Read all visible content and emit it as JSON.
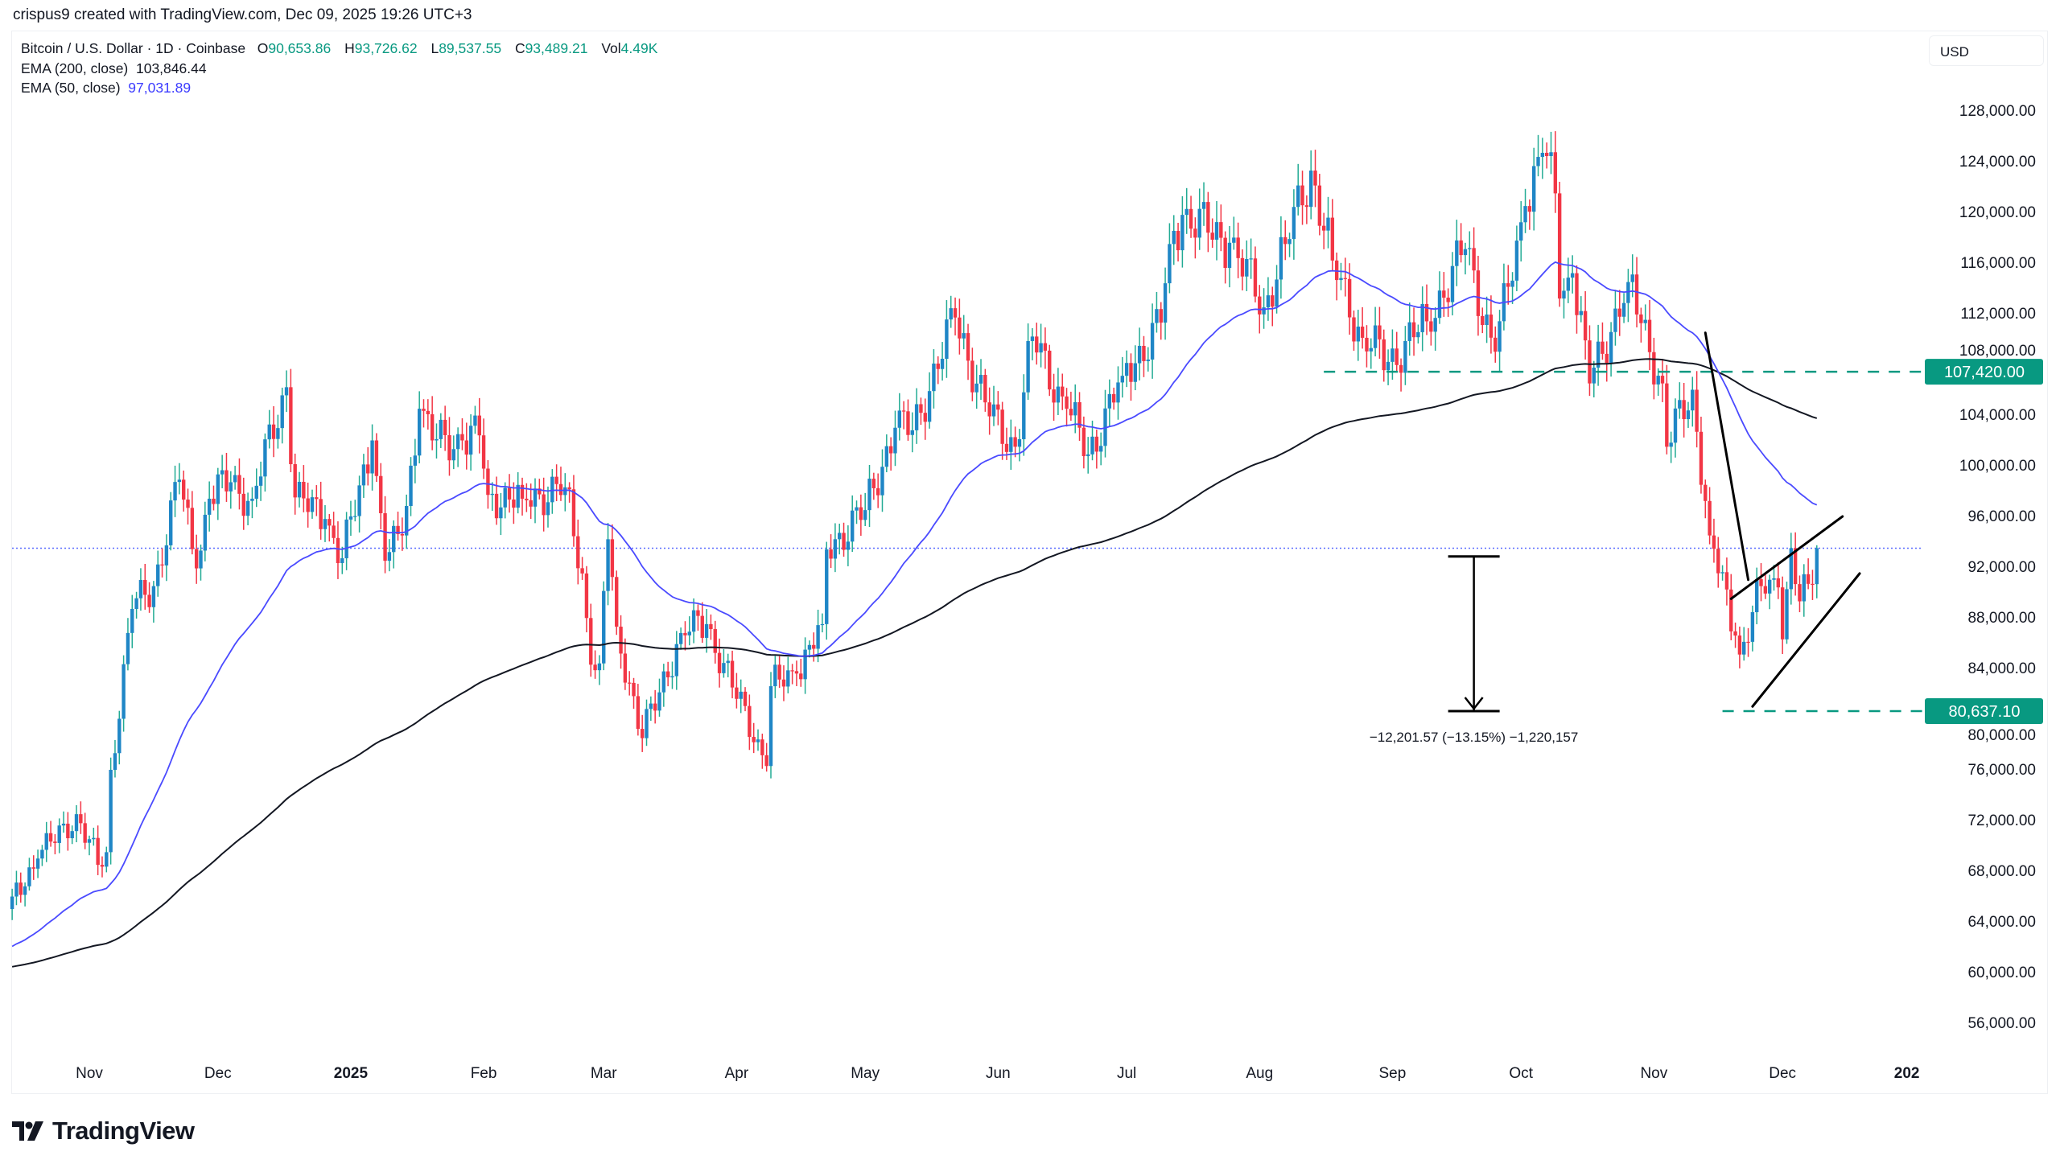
{
  "header": {
    "credit": "crispus9 created with TradingView.com, Dec 09, 2025 19:26 UTC+3",
    "symbol": "Bitcoin / U.S. Dollar · 1D · Coinbase",
    "ohlc": {
      "o_label": "O",
      "o": "90,653.86",
      "h_label": "H",
      "h": "93,726.62",
      "l_label": "L",
      "l": "89,537.55",
      "c_label": "C",
      "c": "93,489.21",
      "vol_label": "Vol",
      "vol": "4.49K"
    },
    "ema200_label": "EMA (200, close)",
    "ema200_value": "103,846.44",
    "ema50_label": "EMA (50, close)",
    "ema50_value": "97,031.89"
  },
  "currency_button": "USD",
  "brand": "TradingView",
  "chart_data": {
    "type": "candlestick",
    "timeframe": "1D",
    "ylim": [
      54000,
      130000
    ],
    "colors": {
      "up_body": "#1f86c6",
      "up_wick": "#22ab94",
      "down": "#f23645",
      "ema200": "#131722",
      "ema50": "#4a4aff",
      "level": "#089981",
      "last_price_line": "#5b6cff"
    },
    "y_ticks": [
      "128,000.00",
      "124,000.00",
      "120,000.00",
      "116,000.00",
      "112,000.00",
      "108,000.00",
      "104,000.00",
      "100,000.00",
      "96,000.00",
      "92,000.00",
      "88,000.00",
      "84,000.00",
      "80,000.00",
      "76,000.00",
      "72,000.00",
      "68,000.00",
      "64,000.00",
      "60,000.00",
      "56,000.00"
    ],
    "x_ticks": [
      {
        "label": "Nov",
        "date": "2024-11-01"
      },
      {
        "label": "Dec",
        "date": "2024-12-01"
      },
      {
        "label": "2025",
        "date": "2025-01-01",
        "bold": true
      },
      {
        "label": "Feb",
        "date": "2025-02-01"
      },
      {
        "label": "Mar",
        "date": "2025-03-01"
      },
      {
        "label": "Apr",
        "date": "2025-04-01"
      },
      {
        "label": "May",
        "date": "2025-05-01"
      },
      {
        "label": "Jun",
        "date": "2025-06-01"
      },
      {
        "label": "Jul",
        "date": "2025-07-01"
      },
      {
        "label": "Aug",
        "date": "2025-08-01"
      },
      {
        "label": "Sep",
        "date": "2025-09-01"
      },
      {
        "label": "Oct",
        "date": "2025-10-01"
      },
      {
        "label": "Nov",
        "date": "2025-11-01"
      },
      {
        "label": "Dec",
        "date": "2025-12-01"
      },
      {
        "label": "202",
        "date": "2025-12-30",
        "bold": true
      }
    ],
    "approx_closes": [
      [
        "2024-10-14",
        66000
      ],
      [
        "2024-10-20",
        69000
      ],
      [
        "2024-10-29",
        72500
      ],
      [
        "2024-11-03",
        68500
      ],
      [
        "2024-11-05",
        69500
      ],
      [
        "2024-11-06",
        76000
      ],
      [
        "2024-11-11",
        88700
      ],
      [
        "2024-11-16",
        90500
      ],
      [
        "2024-11-22",
        98900
      ],
      [
        "2024-11-26",
        91900
      ],
      [
        "2024-11-29",
        97400
      ],
      [
        "2024-12-04",
        98700
      ],
      [
        "2024-12-09",
        97400
      ],
      [
        "2024-12-17",
        106200
      ],
      [
        "2024-12-19",
        97500
      ],
      [
        "2024-12-26",
        95800
      ],
      [
        "2024-12-30",
        92700
      ],
      [
        "2025-01-06",
        102000
      ],
      [
        "2025-01-09",
        92500
      ],
      [
        "2025-01-13",
        94500
      ],
      [
        "2025-01-17",
        104500
      ],
      [
        "2025-01-20",
        102000
      ],
      [
        "2025-01-27",
        102000
      ],
      [
        "2025-01-31",
        102400
      ],
      [
        "2025-02-02",
        97700
      ],
      [
        "2025-02-10",
        97400
      ],
      [
        "2025-02-20",
        98300
      ],
      [
        "2025-02-24",
        91500
      ],
      [
        "2025-02-26",
        84300
      ],
      [
        "2025-02-28",
        84400
      ],
      [
        "2025-03-02",
        94200
      ],
      [
        "2025-03-04",
        87300
      ],
      [
        "2025-03-10",
        78500
      ],
      [
        "2025-03-19",
        86800
      ],
      [
        "2025-03-25",
        87500
      ],
      [
        "2025-03-31",
        82500
      ],
      [
        "2025-04-06",
        78400
      ],
      [
        "2025-04-08",
        76300
      ],
      [
        "2025-04-09",
        82600
      ],
      [
        "2025-04-15",
        83600
      ],
      [
        "2025-04-21",
        87500
      ],
      [
        "2025-04-22",
        93400
      ],
      [
        "2025-05-01",
        96500
      ],
      [
        "2025-05-08",
        103000
      ],
      [
        "2025-05-12",
        102800
      ],
      [
        "2025-05-22",
        111700
      ],
      [
        "2025-05-30",
        103900
      ],
      [
        "2025-06-05",
        101500
      ],
      [
        "2025-06-09",
        110200
      ],
      [
        "2025-06-17",
        104500
      ],
      [
        "2025-06-22",
        100900
      ],
      [
        "2025-06-30",
        107100
      ],
      [
        "2025-07-09",
        111300
      ],
      [
        "2025-07-11",
        117500
      ],
      [
        "2025-07-14",
        119800
      ],
      [
        "2025-07-25",
        117600
      ],
      [
        "2025-08-02",
        112500
      ],
      [
        "2025-08-07",
        117500
      ],
      [
        "2025-08-13",
        123300
      ],
      [
        "2025-08-18",
        116200
      ],
      [
        "2025-08-25",
        110100
      ],
      [
        "2025-08-31",
        108200
      ],
      [
        "2025-09-09",
        111400
      ],
      [
        "2025-09-18",
        117100
      ],
      [
        "2025-09-25",
        109000
      ],
      [
        "2025-10-02",
        120500
      ],
      [
        "2025-10-06",
        124700
      ],
      [
        "2025-10-09",
        121500
      ],
      [
        "2025-10-10",
        113200
      ],
      [
        "2025-10-13",
        115200
      ],
      [
        "2025-10-17",
        106500
      ],
      [
        "2025-10-26",
        114500
      ],
      [
        "2025-11-03",
        106500
      ],
      [
        "2025-11-04",
        101500
      ],
      [
        "2025-11-10",
        106000
      ],
      [
        "2025-11-14",
        94500
      ],
      [
        "2025-11-20",
        86600
      ],
      [
        "2025-11-21",
        85100
      ],
      [
        "2025-11-26",
        90500
      ],
      [
        "2025-11-30",
        90400
      ],
      [
        "2025-12-01",
        86300
      ],
      [
        "2025-12-03",
        93500
      ],
      [
        "2025-12-05",
        89300
      ],
      [
        "2025-12-08",
        90600
      ],
      [
        "2025-12-09",
        93489.21
      ]
    ],
    "last_candle": {
      "date": "2025-12-09",
      "open": 90653.86,
      "high": 93726.62,
      "low": 89537.55,
      "close": 93489.21
    },
    "last_price": 93489.21,
    "horizontal_levels": [
      {
        "price": 107420.0,
        "label": "107,420.00",
        "from": "2025-08-16"
      },
      {
        "price": 80637.1,
        "label": "80,637.10",
        "from": "2025-11-17"
      }
    ],
    "measure": {
      "from_price": 92838.67,
      "to_price": 80637.1,
      "date": "2025-09-20",
      "label": "−12,201.57 (−13.15%) −1,220,157"
    },
    "flag": {
      "pole": [
        [
          "2025-11-13",
          110500
        ],
        [
          "2025-11-23",
          91000
        ]
      ],
      "upper": [
        [
          "2025-11-19",
          89500
        ],
        [
          "2025-12-15",
          96000
        ]
      ],
      "lower": [
        [
          "2025-11-24",
          81000
        ],
        [
          "2025-12-19",
          91500
        ]
      ]
    }
  }
}
